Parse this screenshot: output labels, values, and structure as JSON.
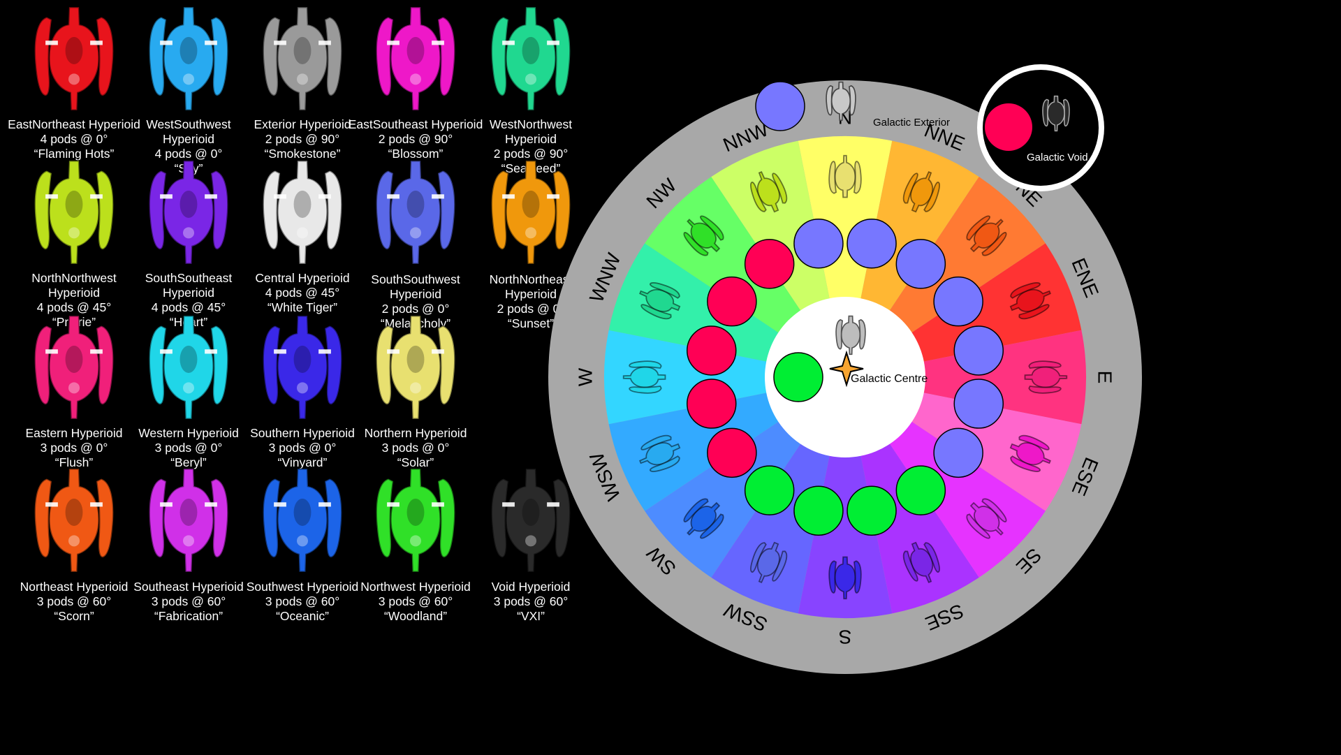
{
  "hyperioids": [
    {
      "name": "EastNortheast Hyperioid",
      "pods": "4 pods @ 0°",
      "nickname": "“Flaming Hots”",
      "color": "#e8141c"
    },
    {
      "name": "WestSouthwest Hyperioid",
      "pods": "4 pods @ 0°",
      "nickname": "“Sky”",
      "color": "#28aaf0"
    },
    {
      "name": "Exterior Hyperioid",
      "pods": "2 pods @ 90°",
      "nickname": "“Smokestone”",
      "color": "#9a9a9a"
    },
    {
      "name": "EastSoutheast Hyperioid",
      "pods": "2 pods @ 90°",
      "nickname": "“Blossom”",
      "color": "#ee18c8"
    },
    {
      "name": "WestNorthwest Hyperioid",
      "pods": "2 pods @ 90°",
      "nickname": "“Seaweed”",
      "color": "#20d890"
    },
    {
      "name": "NorthNorthwest Hyperioid",
      "pods": "4 pods @ 45°",
      "nickname": "“Prairie”",
      "color": "#bce01c"
    },
    {
      "name": "SouthSoutheast Hyperioid",
      "pods": "4 pods @ 45°",
      "nickname": "“Heart”",
      "color": "#7a26e6"
    },
    {
      "name": "Central Hyperioid",
      "pods": "4 pods @ 45°",
      "nickname": "“White Tiger”",
      "color": "#e8e8e8"
    },
    {
      "name": "SouthSouthwest Hyperioid",
      "pods": "2 pods @ 0°",
      "nickname": "“Melancholy”",
      "color": "#5a68e8"
    },
    {
      "name": "NorthNortheast Hyperioid",
      "pods": "2 pods @ 0°",
      "nickname": "“Sunset”",
      "color": "#f0980c"
    },
    {
      "name": "Eastern Hyperioid",
      "pods": "3 pods @ 0°",
      "nickname": "“Flush”",
      "color": "#f0207a"
    },
    {
      "name": "Western Hyperioid",
      "pods": "3 pods @ 0°",
      "nickname": "“Beryl”",
      "color": "#20d6e8"
    },
    {
      "name": "Southern Hyperioid",
      "pods": "3 pods @ 0°",
      "nickname": "“Vinyard”",
      "color": "#3a28e8"
    },
    {
      "name": "Northern Hyperioid",
      "pods": "3 pods @ 0°",
      "nickname": "“Solar”",
      "color": "#e8e070"
    },
    {
      "name": "Northeast Hyperioid",
      "pods": "3 pods @ 60°",
      "nickname": "“Scorn”",
      "color": "#f05814"
    },
    {
      "name": "Southeast Hyperioid",
      "pods": "3 pods @ 60°",
      "nickname": "“Fabrication”",
      "color": "#d030e8"
    },
    {
      "name": "Southwest Hyperioid",
      "pods": "3 pods @ 60°",
      "nickname": "“Oceanic”",
      "color": "#1c64e8"
    },
    {
      "name": "Northwest Hyperioid",
      "pods": "3 pods @ 60°",
      "nickname": "“Woodland”",
      "color": "#30e028"
    },
    {
      "name": "Void Hyperioid",
      "pods": "3 pods @ 60°",
      "nickname": "“VXI”",
      "color": "#2a2a2a"
    }
  ],
  "compass": {
    "directions": [
      "N",
      "NNE",
      "NE",
      "ENE",
      "E",
      "ESE",
      "SE",
      "SSE",
      "S",
      "SSW",
      "SW",
      "WSW",
      "W",
      "WNW",
      "NW",
      "NNW"
    ],
    "segment_colors": [
      "#ffff66",
      "#ffb733",
      "#ff7a33",
      "#ff3333",
      "#ff3380",
      "#ff66cc",
      "#e633ff",
      "#aa33ff",
      "#8844ff",
      "#6666ff",
      "#4d8cff",
      "#33aaff",
      "#33d6ff",
      "#33f0aa",
      "#66ff66",
      "#ccff66"
    ],
    "ship_colors": [
      "#e8e070",
      "#f0980c",
      "#f05814",
      "#e8141c",
      "#f0207a",
      "#ee18c8",
      "#d030e8",
      "#7a26e6",
      "#3a28e8",
      "#5a68e8",
      "#1c64e8",
      "#28aaf0",
      "#20d6e8",
      "#20d890",
      "#30e028",
      "#bce01c"
    ],
    "ring_colors": [
      "#00ee33",
      "#00ee33",
      "#ff0055",
      "#ff0055",
      "#ff0055",
      "#ff0055",
      "#ff0055",
      "#7777ff",
      "#7777ff",
      "#7777ff",
      "#7777ff",
      "#7777ff",
      "#7777ff",
      "#7777ff",
      "#00ee33",
      "#00ee33"
    ],
    "exterior_label": "Galactic Exterior",
    "centre_label": "Galactic Centre",
    "void_label": "Galactic Void",
    "exterior_circle_color": "#7777ff",
    "centre_circle_color": "#00ee33",
    "void_circle_color": "#ff0055",
    "star_color": "#f7a531",
    "outer_band_color": "#a8a8a8"
  }
}
